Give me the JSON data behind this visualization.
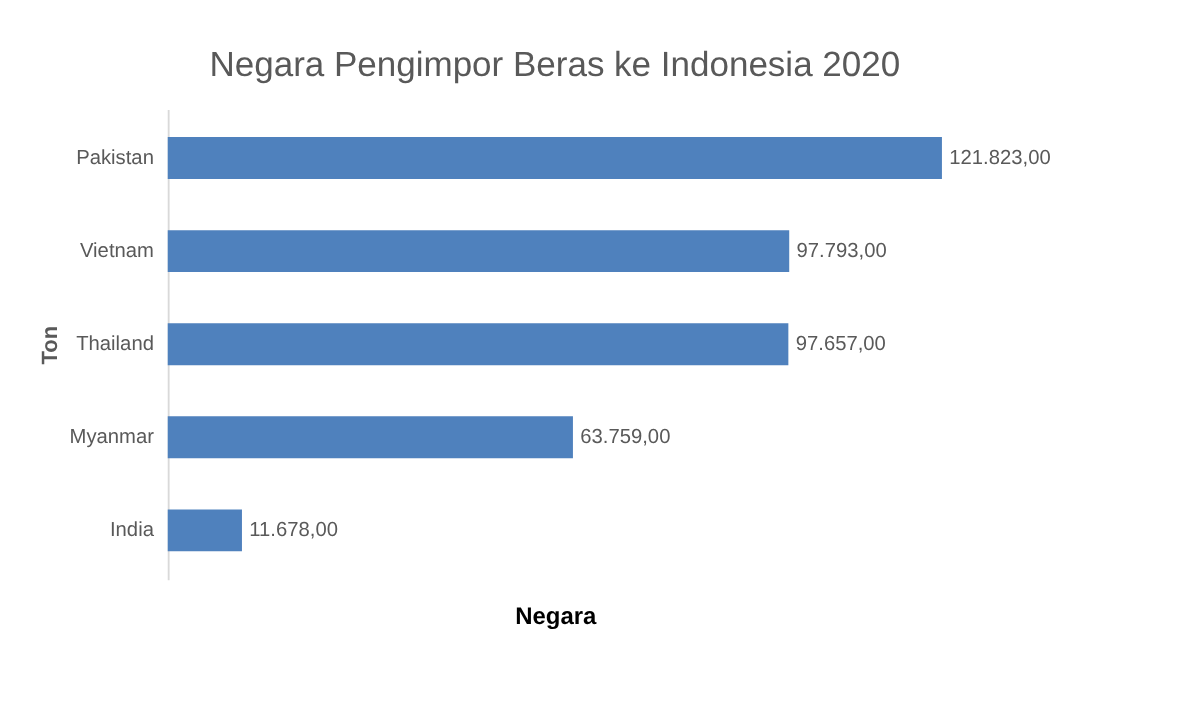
{
  "chart_data": {
    "type": "bar",
    "orientation": "horizontal",
    "title": "Negara Pengimpor Beras ke Indonesia 2020",
    "xlabel": "Negara",
    "ylabel": "Ton",
    "categories": [
      "Pakistan",
      "Vietnam",
      "Thailand",
      "Myanmar",
      "India"
    ],
    "values": [
      121823,
      97793,
      97657,
      63759,
      11678
    ],
    "value_labels": [
      "121.823,00",
      "97.793,00",
      "97.657,00",
      "63.759,00",
      "11.678,00"
    ],
    "color": "#4f81bd",
    "tick_labels": "y",
    "grid": false,
    "legend": false
  }
}
